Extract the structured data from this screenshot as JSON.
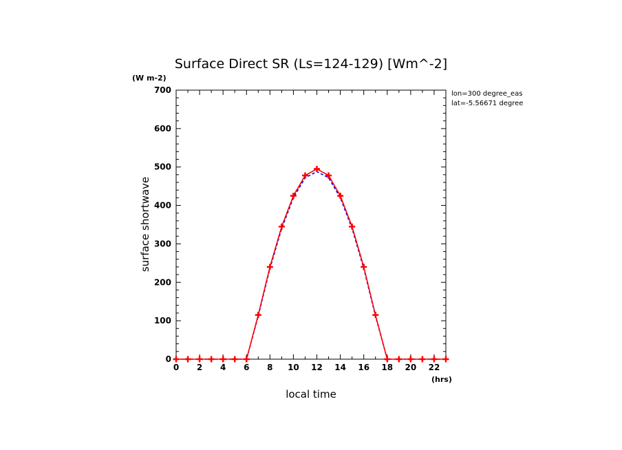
{
  "chart_data": {
    "type": "line",
    "title": "Surface Direct SR (Ls=124-129) [Wm^-2]",
    "y_unit_label": "(W m-2)",
    "ylabel": "surface shortwave",
    "xlabel": "local time",
    "x_unit_label": "(hrs)",
    "annotations": [
      "lon=300 degree_eas",
      "lat=-5.56671 degree"
    ],
    "xlim": [
      0,
      23
    ],
    "ylim": [
      0,
      700
    ],
    "x_ticks": [
      0,
      2,
      4,
      6,
      8,
      10,
      12,
      14,
      16,
      18,
      20,
      22
    ],
    "y_ticks": [
      0,
      100,
      200,
      300,
      400,
      500,
      600,
      700
    ],
    "grid": false,
    "x": [
      0,
      1,
      2,
      3,
      4,
      5,
      6,
      7,
      8,
      9,
      10,
      11,
      12,
      13,
      14,
      15,
      16,
      17,
      18,
      19,
      20,
      21,
      22,
      23
    ],
    "series": [
      {
        "color": "#ff0000",
        "style": "solid",
        "marker": "plus",
        "values": [
          0,
          0,
          0,
          0,
          0,
          0,
          0,
          115,
          240,
          345,
          425,
          478,
          495,
          478,
          425,
          345,
          240,
          115,
          0,
          0,
          0,
          0,
          0,
          0
        ]
      },
      {
        "color": "#0000ff",
        "style": "dashed",
        "marker": "none",
        "values": [
          0,
          0,
          0,
          0,
          0,
          0,
          0,
          112,
          236,
          340,
          420,
          472,
          488,
          472,
          420,
          340,
          236,
          112,
          0,
          0,
          0,
          0,
          0,
          0
        ]
      }
    ]
  }
}
